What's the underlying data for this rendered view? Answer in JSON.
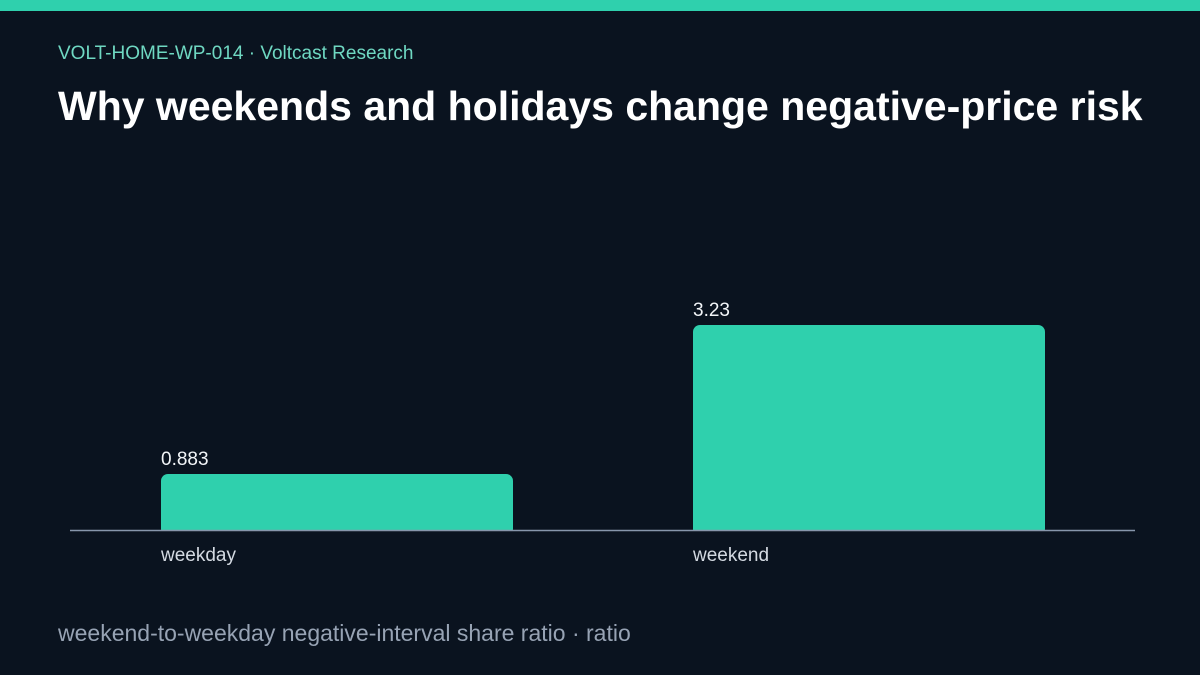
{
  "header": {
    "eyebrow": "VOLT-HOME-WP-014 · Voltcast Research",
    "title": "Why weekends and holidays change negative-price risk"
  },
  "footer": {
    "caption": "weekend-to-weekday negative-interval share ratio · ratio"
  },
  "colors": {
    "accent": "#2fd0ad",
    "background": "#0a131f",
    "axis": "#8796ab",
    "label": "#d4dae2"
  },
  "chart_data": {
    "type": "bar",
    "categories": [
      "weekday",
      "weekend"
    ],
    "values": [
      0.883,
      3.23
    ],
    "value_labels": [
      "0.883",
      "3.23"
    ],
    "title": "",
    "xlabel": "",
    "ylabel": "",
    "ylim": [
      0,
      3.23
    ],
    "grid": false,
    "legend": "none"
  }
}
